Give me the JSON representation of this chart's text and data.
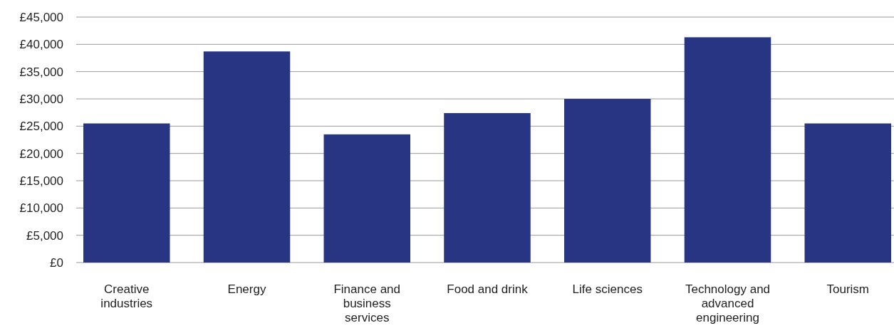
{
  "chart_data": {
    "type": "bar",
    "categories": [
      "Creative industries",
      "Energy",
      "Finance and business services",
      "Food and drink",
      "Life sciences",
      "Technology and advanced engineering",
      "Tourism"
    ],
    "values": [
      25500,
      38700,
      23500,
      27400,
      30000,
      41300,
      25500
    ],
    "color": "#283583",
    "ylim": [
      0,
      45000
    ],
    "yticks": [
      {
        "value": 0,
        "label": "£0"
      },
      {
        "value": 5000,
        "label": "£5,000"
      },
      {
        "value": 10000,
        "label": "£10,000"
      },
      {
        "value": 15000,
        "label": "£15,000"
      },
      {
        "value": 20000,
        "label": "£20,000"
      },
      {
        "value": 25000,
        "label": "£25,000"
      },
      {
        "value": 30000,
        "label": "£30,000"
      },
      {
        "value": 35000,
        "label": "£35,000"
      },
      {
        "value": 40000,
        "label": "£40,000"
      },
      {
        "value": 45000,
        "label": "£45,000"
      }
    ],
    "grid": "y"
  }
}
